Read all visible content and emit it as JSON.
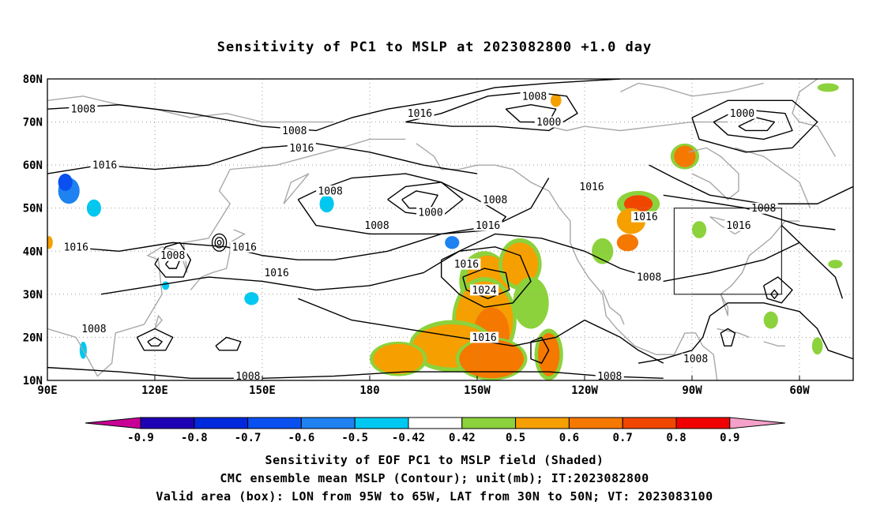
{
  "title": "Sensitivity of PC1 to MSLP at 2023082800 +1.0 day",
  "lat_labels": [
    "80N",
    "70N",
    "60N",
    "50N",
    "40N",
    "30N",
    "20N",
    "10N"
  ],
  "lon_labels": [
    "90E",
    "120E",
    "150E",
    "180",
    "150W",
    "120W",
    "90W",
    "60W"
  ],
  "contour_labels": [
    {
      "text": "1008",
      "lon": 100,
      "lat": 73
    },
    {
      "text": "1008",
      "lon": 159,
      "lat": 68
    },
    {
      "text": "1016",
      "lon": 161,
      "lat": 64
    },
    {
      "text": "1016",
      "lon": 106,
      "lat": 60
    },
    {
      "text": "1008",
      "lon": 169,
      "lat": 54
    },
    {
      "text": "1016",
      "lon": 194,
      "lat": 72
    },
    {
      "text": "1008",
      "lon": 226,
      "lat": 76
    },
    {
      "text": "1000",
      "lon": 230,
      "lat": 70
    },
    {
      "text": "1000",
      "lon": 284,
      "lat": 72
    },
    {
      "text": "1016",
      "lon": 242,
      "lat": 55
    },
    {
      "text": "1008",
      "lon": 215,
      "lat": 52
    },
    {
      "text": "1000",
      "lon": 197,
      "lat": 49
    },
    {
      "text": "1008",
      "lon": 182,
      "lat": 46
    },
    {
      "text": "1016",
      "lon": 213,
      "lat": 46
    },
    {
      "text": "1016",
      "lon": 98,
      "lat": 41
    },
    {
      "text": "1008",
      "lon": 125,
      "lat": 39
    },
    {
      "text": "1016",
      "lon": 145,
      "lat": 41
    },
    {
      "text": "1016",
      "lon": 154,
      "lat": 35
    },
    {
      "text": "1016",
      "lon": 207,
      "lat": 37
    },
    {
      "text": "1024",
      "lon": 212,
      "lat": 31
    },
    {
      "text": "1008",
      "lon": 258,
      "lat": 34
    },
    {
      "text": "1016",
      "lon": 257,
      "lat": 48
    },
    {
      "text": "1016",
      "lon": 283,
      "lat": 46
    },
    {
      "text": "1008",
      "lon": 290,
      "lat": 50
    },
    {
      "text": "1008",
      "lon": 103,
      "lat": 22
    },
    {
      "text": "1016",
      "lon": 212,
      "lat": 20
    },
    {
      "text": "1008",
      "lon": 146,
      "lat": 11
    },
    {
      "text": "1008",
      "lon": 247,
      "lat": 11
    },
    {
      "text": "1008",
      "lon": 271,
      "lat": 15
    }
  ],
  "colorbar": {
    "labels": [
      "-0.9",
      "-0.8",
      "-0.7",
      "-0.6",
      "-0.5",
      "-0.42",
      "0.42",
      "0.5",
      "0.6",
      "0.7",
      "0.8",
      "0.9"
    ],
    "colors": [
      "#1e00b4",
      "#0028dc",
      "#0a50f0",
      "#1e82f0",
      "#00c8f0",
      "#ffffff",
      "#8cd23c",
      "#f5a000",
      "#f57800",
      "#f04600",
      "#f00000"
    ],
    "left_end_color": "#c80096",
    "right_end_color": "#f5a0c8"
  },
  "valid_box": {
    "lon_min": -95,
    "lon_max": -65,
    "lat_min": 30,
    "lat_max": 50
  },
  "captions": {
    "line1": "Sensitivity of EOF PC1 to MSLP field (Shaded)",
    "line2": "CMC ensemble mean MSLP (Contour); unit(mb); IT:2023082800",
    "line3": "Valid area (box): LON from 95W to 65W, LAT from 30N to 50N; VT: 2023083100"
  }
}
